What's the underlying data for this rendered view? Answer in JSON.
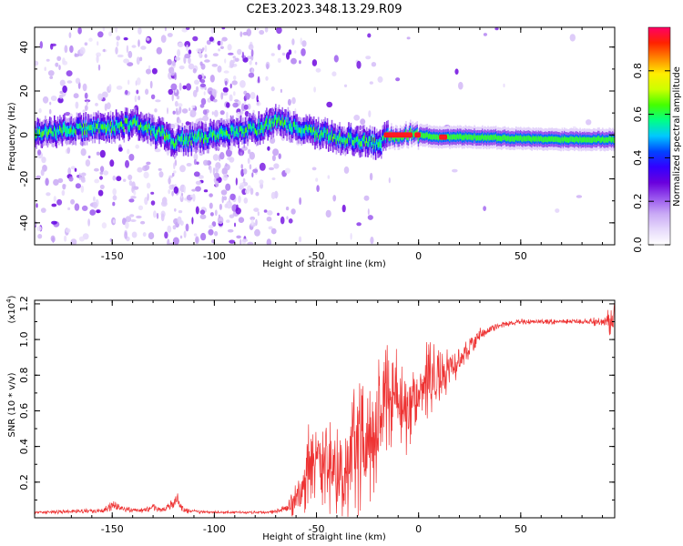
{
  "title": "C2E3.2023.348.13.29.R09",
  "chart_data": [
    {
      "type": "heatmap",
      "xlabel": "Height of straight line (km)",
      "ylabel": "Frequency (Hz)",
      "xlim": [
        -188,
        96
      ],
      "ylim": [
        -50,
        49
      ],
      "xticks": [
        -150,
        -100,
        -50,
        0,
        50
      ],
      "xtick_labels": [
        "-150",
        "-100",
        "-50",
        "0",
        "50"
      ],
      "yticks": [
        -40,
        -20,
        0,
        20,
        40
      ],
      "ytick_labels": [
        "-40",
        "-20",
        "0",
        "20",
        "40"
      ],
      "colorbar": {
        "label": "Normalized spectral amplitude",
        "range": [
          0,
          1
        ],
        "ticks": [
          0.0,
          0.2,
          0.4,
          0.6,
          0.8
        ],
        "tick_labels": [
          "0.0",
          "0.2",
          "0.4",
          "0.6",
          "0.8"
        ],
        "colors": [
          "#ffffff",
          "#e6d9fb",
          "#c9a9f5",
          "#9955ee",
          "#6a00dd",
          "#3300ff",
          "#0044ff",
          "#00c8ff",
          "#00ff88",
          "#44ff00",
          "#ccff00",
          "#ffee00",
          "#ff8800",
          "#ff2200",
          "#ff0066"
        ]
      },
      "ridge": {
        "description_x": [
          -188,
          -160,
          -140,
          -125,
          -120,
          -100,
          -78,
          -70,
          -60,
          -45,
          -30,
          -20,
          -15,
          0,
          10,
          30,
          60,
          96
        ],
        "center_hz": [
          1,
          3,
          5,
          0,
          -3,
          0,
          3,
          7,
          3,
          0,
          -3,
          -4,
          0,
          0,
          -1,
          -1,
          -2,
          -2
        ]
      }
    },
    {
      "type": "line",
      "xlabel": "Height of straight line (km)",
      "ylabel": "SNR (10 * v/v)",
      "y_multiplier": "(x10",
      "y_multiplier_exp": "4",
      "y_multiplier_close": ")",
      "xlim": [
        -188,
        96
      ],
      "ylim": [
        0,
        1.22
      ],
      "xticks": [
        -150,
        -100,
        -50,
        0,
        50
      ],
      "xtick_labels": [
        "-150",
        "-100",
        "-50",
        "0",
        "50"
      ],
      "yticks": [
        0.2,
        0.4,
        0.6,
        0.8,
        1.0,
        1.2
      ],
      "ytick_labels": [
        "0.2",
        "0.4",
        "0.6",
        "0.8",
        "1.0",
        "1.2"
      ],
      "color": "#ee3333",
      "series": [
        {
          "x": [
            -188,
            -170,
            -155,
            -150,
            -145,
            -135,
            -130,
            -125,
            -118,
            -115,
            -100,
            -85,
            -75,
            -65,
            -58,
            -55,
            -50,
            -45,
            -40,
            -35,
            -30,
            -25,
            -20,
            -17,
            -15,
            -10,
            -5,
            0,
            5,
            10,
            15,
            20,
            25,
            30,
            40,
            50,
            60,
            70,
            80,
            90,
            96
          ],
          "y": [
            0.03,
            0.035,
            0.04,
            0.07,
            0.05,
            0.04,
            0.06,
            0.04,
            0.1,
            0.04,
            0.03,
            0.03,
            0.03,
            0.05,
            0.12,
            0.28,
            0.35,
            0.3,
            0.22,
            0.3,
            0.42,
            0.38,
            0.5,
            0.7,
            0.78,
            0.65,
            0.6,
            0.72,
            0.78,
            0.76,
            0.85,
            0.88,
            0.96,
            1.03,
            1.08,
            1.1,
            1.1,
            1.1,
            1.1,
            1.1,
            1.1
          ],
          "spread": [
            0.01,
            0.01,
            0.015,
            0.03,
            0.015,
            0.015,
            0.02,
            0.015,
            0.04,
            0.015,
            0.008,
            0.008,
            0.01,
            0.02,
            0.15,
            0.25,
            0.25,
            0.25,
            0.3,
            0.35,
            0.45,
            0.35,
            0.35,
            0.45,
            0.4,
            0.3,
            0.25,
            0.15,
            0.25,
            0.2,
            0.12,
            0.1,
            0.06,
            0.04,
            0.02,
            0.015,
            0.015,
            0.015,
            0.015,
            0.03,
            0.12
          ]
        }
      ]
    }
  ]
}
